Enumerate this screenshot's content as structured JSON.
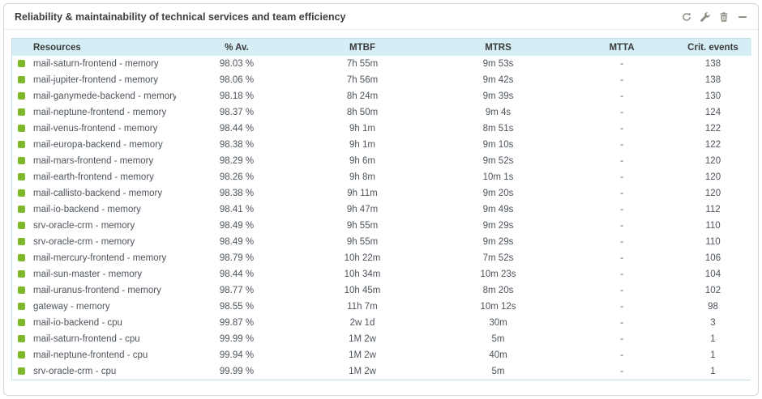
{
  "widget": {
    "title": "Reliability & maintainability of technical services and team efficiency",
    "actions": [
      {
        "name": "refresh-icon",
        "action": "force-refresh"
      },
      {
        "name": "wrench-icon",
        "action": "configure"
      },
      {
        "name": "trash-icon",
        "action": "delete"
      },
      {
        "name": "minimize-icon",
        "action": "minimize"
      }
    ]
  },
  "colors": {
    "status_ok": "#7eb82a",
    "header_bg": "#d5edf5",
    "table_border": "#c6dee8",
    "icon_gray": "#8a8b80",
    "body_text": "#4d545c",
    "title_text": "#3e3e3e"
  },
  "table": {
    "columns": [
      {
        "key": "resource",
        "label": "Resources"
      },
      {
        "key": "availability",
        "label": "% Av."
      },
      {
        "key": "mtbf",
        "label": "MTBF"
      },
      {
        "key": "mtrs",
        "label": "MTRS"
      },
      {
        "key": "mtta",
        "label": "MTTA"
      },
      {
        "key": "crit_events",
        "label": "Crit. events"
      }
    ],
    "rows": [
      {
        "status": "status_ok",
        "resource": "mail-saturn-frontend - memory",
        "availability": "98.03 %",
        "mtbf": "7h 55m",
        "mtrs": "9m 53s",
        "mtta": "-",
        "crit_events": "138"
      },
      {
        "status": "status_ok",
        "resource": "mail-jupiter-frontend - memory",
        "availability": "98.06 %",
        "mtbf": "7h 56m",
        "mtrs": "9m 42s",
        "mtta": "-",
        "crit_events": "138"
      },
      {
        "status": "status_ok",
        "resource": "mail-ganymede-backend - memory",
        "availability": "98.18 %",
        "mtbf": "8h 24m",
        "mtrs": "9m 39s",
        "mtta": "-",
        "crit_events": "130"
      },
      {
        "status": "status_ok",
        "resource": "mail-neptune-frontend - memory",
        "availability": "98.37 %",
        "mtbf": "8h 50m",
        "mtrs": "9m 4s",
        "mtta": "-",
        "crit_events": "124"
      },
      {
        "status": "status_ok",
        "resource": "mail-venus-frontend - memory",
        "availability": "98.44 %",
        "mtbf": "9h 1m",
        "mtrs": "8m 51s",
        "mtta": "-",
        "crit_events": "122"
      },
      {
        "status": "status_ok",
        "resource": "mail-europa-backend - memory",
        "availability": "98.38 %",
        "mtbf": "9h 1m",
        "mtrs": "9m 10s",
        "mtta": "-",
        "crit_events": "122"
      },
      {
        "status": "status_ok",
        "resource": "mail-mars-frontend - memory",
        "availability": "98.29 %",
        "mtbf": "9h 6m",
        "mtrs": "9m 52s",
        "mtta": "-",
        "crit_events": "120"
      },
      {
        "status": "status_ok",
        "resource": "mail-earth-frontend - memory",
        "availability": "98.26 %",
        "mtbf": "9h 8m",
        "mtrs": "10m 1s",
        "mtta": "-",
        "crit_events": "120"
      },
      {
        "status": "status_ok",
        "resource": "mail-callisto-backend - memory",
        "availability": "98.38 %",
        "mtbf": "9h 11m",
        "mtrs": "9m 20s",
        "mtta": "-",
        "crit_events": "120"
      },
      {
        "status": "status_ok",
        "resource": "mail-io-backend - memory",
        "availability": "98.41 %",
        "mtbf": "9h 47m",
        "mtrs": "9m 49s",
        "mtta": "-",
        "crit_events": "112"
      },
      {
        "status": "status_ok",
        "resource": "srv-oracle-crm - memory",
        "availability": "98.49 %",
        "mtbf": "9h 55m",
        "mtrs": "9m 29s",
        "mtta": "-",
        "crit_events": "110"
      },
      {
        "status": "status_ok",
        "resource": "srv-oracle-crm - memory",
        "availability": "98.49 %",
        "mtbf": "9h 55m",
        "mtrs": "9m 29s",
        "mtta": "-",
        "crit_events": "110"
      },
      {
        "status": "status_ok",
        "resource": "mail-mercury-frontend - memory",
        "availability": "98.79 %",
        "mtbf": "10h 22m",
        "mtrs": "7m 52s",
        "mtta": "-",
        "crit_events": "106"
      },
      {
        "status": "status_ok",
        "resource": "mail-sun-master - memory",
        "availability": "98.44 %",
        "mtbf": "10h 34m",
        "mtrs": "10m 23s",
        "mtta": "-",
        "crit_events": "104"
      },
      {
        "status": "status_ok",
        "resource": "mail-uranus-frontend - memory",
        "availability": "98.77 %",
        "mtbf": "10h 45m",
        "mtrs": "8m 20s",
        "mtta": "-",
        "crit_events": "102"
      },
      {
        "status": "status_ok",
        "resource": "gateway - memory",
        "availability": "98.55 %",
        "mtbf": "11h 7m",
        "mtrs": "10m 12s",
        "mtta": "-",
        "crit_events": "98"
      },
      {
        "status": "status_ok",
        "resource": "mail-io-backend - cpu",
        "availability": "99.87 %",
        "mtbf": "2w 1d",
        "mtrs": "30m",
        "mtta": "-",
        "crit_events": "3"
      },
      {
        "status": "status_ok",
        "resource": "mail-saturn-frontend - cpu",
        "availability": "99.99 %",
        "mtbf": "1M 2w",
        "mtrs": "5m",
        "mtta": "-",
        "crit_events": "1"
      },
      {
        "status": "status_ok",
        "resource": "mail-neptune-frontend - cpu",
        "availability": "99.94 %",
        "mtbf": "1M 2w",
        "mtrs": "40m",
        "mtta": "-",
        "crit_events": "1"
      },
      {
        "status": "status_ok",
        "resource": "srv-oracle-crm - cpu",
        "availability": "99.99 %",
        "mtbf": "1M 2w",
        "mtrs": "5m",
        "mtta": "-",
        "crit_events": "1"
      }
    ]
  }
}
